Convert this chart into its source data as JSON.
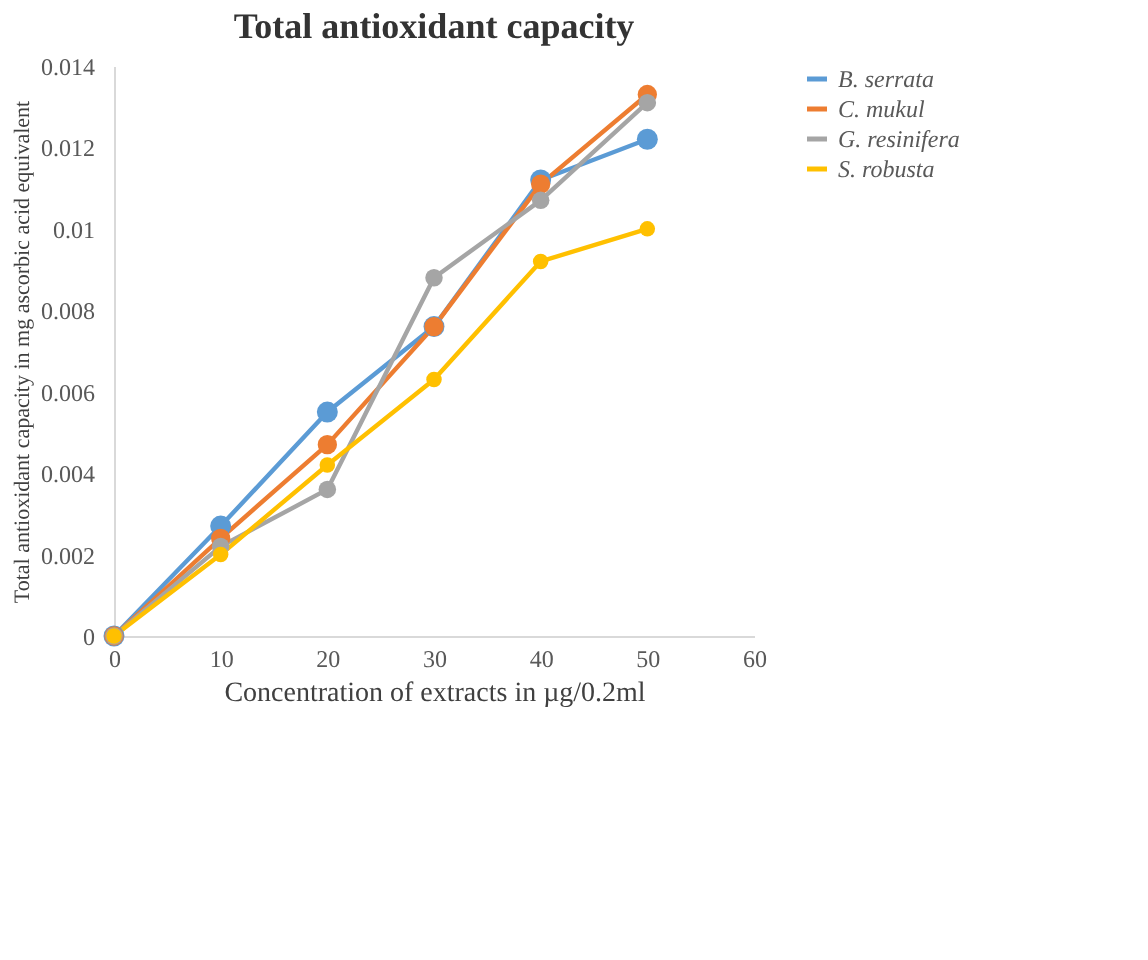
{
  "chart_data": {
    "type": "line",
    "title": "Total antioxidant capacity",
    "xlabel": "Concentration of extracts in µg/0.2ml",
    "ylabel": "Total antioxidant capacity  in mg ascorbic acid equivalent",
    "x": [
      0,
      10,
      20,
      30,
      40,
      50
    ],
    "series": [
      {
        "name": "B. serrata",
        "color": "#5b9bd5",
        "values": [
          0,
          0.0027,
          0.0055,
          0.0076,
          0.0112,
          0.0122
        ]
      },
      {
        "name": "C. mukul",
        "color": "#ed7d31",
        "values": [
          0,
          0.0024,
          0.0047,
          0.0076,
          0.0111,
          0.0133
        ]
      },
      {
        "name": "G. resinifera",
        "color": "#a5a5a5",
        "values": [
          0,
          0.0022,
          0.0036,
          0.0088,
          0.0107,
          0.0131
        ]
      },
      {
        "name": "S. robusta",
        "color": "#ffc000",
        "values": [
          0,
          0.002,
          0.0042,
          0.0063,
          0.0092,
          0.01
        ]
      }
    ],
    "xlim": [
      0,
      60
    ],
    "xticks": [
      0,
      10,
      20,
      30,
      40,
      50,
      60
    ],
    "ylim": [
      0,
      0.014
    ],
    "yticks": [
      0,
      0.002,
      0.004,
      0.006,
      0.008,
      0.01,
      0.012,
      0.014
    ],
    "grid": false,
    "legend": "right",
    "marker": "circle",
    "line_style": "solid"
  }
}
